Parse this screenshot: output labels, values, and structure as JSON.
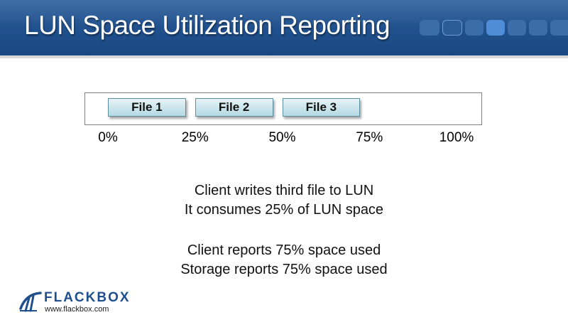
{
  "header": {
    "title": "LUN Space Utilization Reporting",
    "colors": {
      "banner": "#1f4f8c",
      "dot_light": "#4f8ed6",
      "dot_dim": "#3b6ea8"
    }
  },
  "diagram": {
    "files": [
      {
        "label": "File 1",
        "start_percent": 0,
        "size_percent": 25
      },
      {
        "label": "File 2",
        "start_percent": 25,
        "size_percent": 25
      },
      {
        "label": "File 3",
        "start_percent": 50,
        "size_percent": 25
      }
    ],
    "ticks": [
      "0%",
      "25%",
      "50%",
      "75%",
      "100%"
    ]
  },
  "body": {
    "line1": "Client writes third file to LUN",
    "line2": "It consumes 25% of LUN space",
    "line3": "Client reports 75% space used",
    "line4": "Storage reports 75% space used"
  },
  "logo": {
    "brand": "FLACKBOX",
    "url": "www.flackbox.com",
    "icon": "flackbox-logo-icon"
  }
}
